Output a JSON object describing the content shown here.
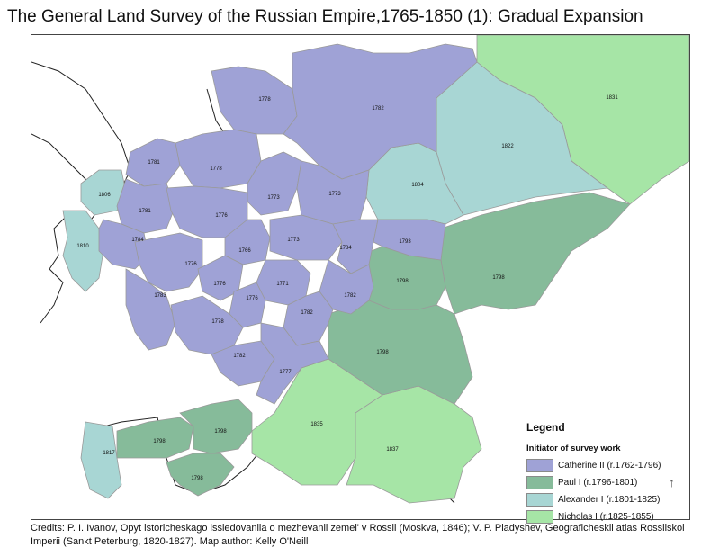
{
  "title": "The General Land Survey of the Russian Empire,1765-1850 (1): Gradual Expansion",
  "colors": {
    "catherine": "#9fa2d6",
    "paul": "#86bb9a",
    "alexander": "#a8d6d4",
    "nicholas": "#a6e5a6",
    "border": "#9a9a9a",
    "coast": "#222222"
  },
  "map": {
    "regions": [
      {
        "name": "1778",
        "initiator": "catherine"
      },
      {
        "name": "1782",
        "initiator": "catherine"
      },
      {
        "name": "1781",
        "initiator": "catherine"
      },
      {
        "name": "1778",
        "initiator": "catherine"
      },
      {
        "name": "1773",
        "initiator": "catherine"
      },
      {
        "name": "1773",
        "initiator": "catherine"
      },
      {
        "name": "1781",
        "initiator": "catherine"
      },
      {
        "name": "1776",
        "initiator": "catherine"
      },
      {
        "name": "1784",
        "initiator": "catherine"
      },
      {
        "name": "1766",
        "initiator": "catherine"
      },
      {
        "name": "1773",
        "initiator": "catherine"
      },
      {
        "name": "1784",
        "initiator": "catherine"
      },
      {
        "name": "1793",
        "initiator": "catherine"
      },
      {
        "name": "1776",
        "initiator": "catherine"
      },
      {
        "name": "1776",
        "initiator": "catherine"
      },
      {
        "name": "1771",
        "initiator": "catherine"
      },
      {
        "name": "1776",
        "initiator": "catherine"
      },
      {
        "name": "1783",
        "initiator": "catherine"
      },
      {
        "name": "1782",
        "initiator": "catherine"
      },
      {
        "name": "1782",
        "initiator": "catherine"
      },
      {
        "name": "1778",
        "initiator": "catherine"
      },
      {
        "name": "1782",
        "initiator": "catherine"
      },
      {
        "name": "1777",
        "initiator": "catherine"
      },
      {
        "name": "1798",
        "initiator": "paul"
      },
      {
        "name": "1798",
        "initiator": "paul"
      },
      {
        "name": "1798",
        "initiator": "paul"
      },
      {
        "name": "1798",
        "initiator": "paul"
      },
      {
        "name": "1798",
        "initiator": "paul"
      },
      {
        "name": "1798",
        "initiator": "paul"
      },
      {
        "name": "1806",
        "initiator": "alexander"
      },
      {
        "name": "1810",
        "initiator": "alexander"
      },
      {
        "name": "1804",
        "initiator": "alexander"
      },
      {
        "name": "1822",
        "initiator": "alexander"
      },
      {
        "name": "1817",
        "initiator": "alexander"
      },
      {
        "name": "1831",
        "initiator": "nicholas"
      },
      {
        "name": "1835",
        "initiator": "nicholas"
      },
      {
        "name": "1837",
        "initiator": "nicholas"
      }
    ]
  },
  "legend": {
    "title": "Legend",
    "subtitle": "Initiator of survey work",
    "items": [
      {
        "key": "catherine",
        "label": "Catherine II (r.1762-1796)"
      },
      {
        "key": "paul",
        "label": "Paul I (r.1796-1801)"
      },
      {
        "key": "alexander",
        "label": "Alexander I (r.1801-1825)"
      },
      {
        "key": "nicholas",
        "label": "Nicholas I (r.1825-1855)"
      }
    ]
  },
  "credits": "Credits: P. I. Ivanov, Opyt istoricheskago issledovaniia o mezhevanii zemel' v Rossii (Moskva, 1846); V. P. Piadyshev, Geograficheskii atlas Rossiiskoi Imperii (Sankt Peterburg, 1820-1827). Map author: Kelly O'Neill"
}
